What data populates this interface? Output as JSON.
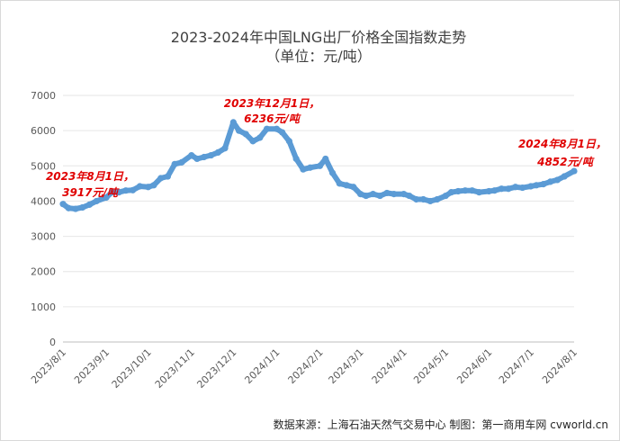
{
  "chart_data": {
    "type": "line",
    "title": "2023-2024年中国LNG出厂价格全国指数走势",
    "subtitle": "（单位：元/吨）",
    "xlabel": "",
    "ylabel": "",
    "ylim": [
      0,
      7000
    ],
    "yticks": [
      0,
      1000,
      2000,
      3000,
      4000,
      5000,
      6000,
      7000
    ],
    "xticks": [
      "2023/8/1",
      "2023/9/1",
      "2023/10/1",
      "2023/11/1",
      "2023/12/1",
      "2024/1/1",
      "2024/2/1",
      "2024/3/1",
      "2024/4/1",
      "2024/5/1",
      "2024/6/1",
      "2024/7/1",
      "2024/8/1"
    ],
    "grid": true,
    "legend": "none",
    "line_color": "#5b9bd5",
    "annotation_color": "#e00000",
    "series": [
      {
        "x": [
          "2023/8/1",
          "2023/8/5",
          "2023/8/10",
          "2023/8/15",
          "2023/8/20",
          "2023/8/25",
          "2023/9/1",
          "2023/9/5",
          "2023/9/10",
          "2023/9/15",
          "2023/9/20",
          "2023/9/25",
          "2023/10/1",
          "2023/10/5",
          "2023/10/10",
          "2023/10/15",
          "2023/10/20",
          "2023/10/25",
          "2023/11/1",
          "2023/11/5",
          "2023/11/10",
          "2023/11/15",
          "2023/11/20",
          "2023/11/25",
          "2023/12/1",
          "2023/12/5",
          "2023/12/10",
          "2023/12/15",
          "2023/12/20",
          "2023/12/25",
          "2024/1/1",
          "2024/1/5",
          "2024/1/10",
          "2024/1/15",
          "2024/1/20",
          "2024/1/25",
          "2024/2/1",
          "2024/2/5",
          "2024/2/10",
          "2024/2/15",
          "2024/2/20",
          "2024/2/25",
          "2024/3/1",
          "2024/3/5",
          "2024/3/10",
          "2024/3/15",
          "2024/3/20",
          "2024/3/25",
          "2024/4/1",
          "2024/4/5",
          "2024/4/10",
          "2024/4/15",
          "2024/4/20",
          "2024/4/25",
          "2024/5/1",
          "2024/5/5",
          "2024/5/10",
          "2024/5/15",
          "2024/5/20",
          "2024/5/25",
          "2024/6/1",
          "2024/6/5",
          "2024/6/10",
          "2024/6/15",
          "2024/6/20",
          "2024/6/25",
          "2024/7/1",
          "2024/7/5",
          "2024/7/10",
          "2024/7/15",
          "2024/7/20",
          "2024/7/25",
          "2024/8/1"
        ],
        "values": [
          3917,
          3800,
          3780,
          3820,
          3900,
          4000,
          4100,
          4250,
          4250,
          4300,
          4310,
          4420,
          4400,
          4450,
          4650,
          4700,
          5050,
          5100,
          5300,
          5200,
          5250,
          5300,
          5380,
          5500,
          6236,
          6000,
          5900,
          5700,
          5800,
          6050,
          6050,
          5950,
          5700,
          5200,
          4900,
          4950,
          5000,
          5200,
          4800,
          4500,
          4450,
          4400,
          4200,
          4150,
          4200,
          4150,
          4230,
          4200,
          4200,
          4150,
          4050,
          4050,
          4000,
          4050,
          4150,
          4250,
          4280,
          4300,
          4300,
          4250,
          4280,
          4300,
          4350,
          4350,
          4400,
          4380,
          4420,
          4450,
          4480,
          4550,
          4600,
          4700,
          4852
        ]
      }
    ],
    "annotations": [
      {
        "line1": "2023年8月1日，",
        "line2": "3917元/吨"
      },
      {
        "line1": "2023年12月1日，",
        "line2": "6236元/吨"
      },
      {
        "line1": "2024年8月1日，",
        "line2": "4852元/吨"
      }
    ]
  },
  "footer": {
    "source": "数据来源：上海石油天然气交易中心 制图：第一商用车网 cvworld.cn"
  }
}
